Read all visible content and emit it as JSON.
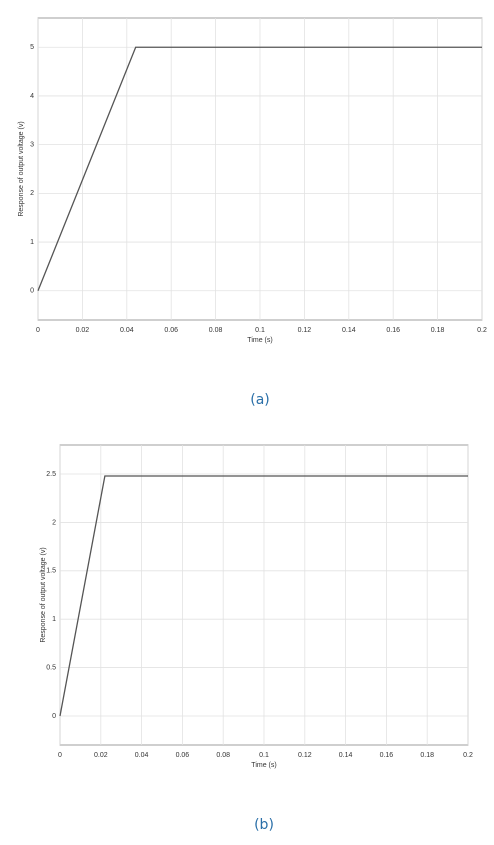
{
  "chart_data": [
    {
      "type": "line",
      "caption": "(a)",
      "xlabel": "Time (s)",
      "ylabel": "Response of output voltage (v)",
      "x": [
        0,
        0.044,
        0.2
      ],
      "series": [
        {
          "color": "#555555",
          "values": [
            0,
            5,
            5
          ]
        }
      ],
      "xlim": [
        0,
        0.2
      ],
      "xticks": [
        0,
        0.02,
        0.04,
        0.06,
        0.08,
        0.1,
        0.12,
        0.14,
        0.16,
        0.18,
        0.2
      ],
      "ylim": [
        -0.6,
        5.6
      ],
      "yticks": [
        0,
        1,
        2,
        3,
        4,
        5
      ],
      "grid": true
    },
    {
      "type": "line",
      "caption": "(b)",
      "xlabel": "Time (s)",
      "ylabel": "Response of output voltage (v)",
      "x": [
        0,
        0.022,
        0.2
      ],
      "series": [
        {
          "color": "#555555",
          "values": [
            0,
            2.48,
            2.48
          ]
        }
      ],
      "xlim": [
        0,
        0.2
      ],
      "xticks": [
        0,
        0.02,
        0.04,
        0.06,
        0.08,
        0.1,
        0.12,
        0.14,
        0.16,
        0.18,
        0.2
      ],
      "ylim": [
        -0.3,
        2.8
      ],
      "yticks": [
        0,
        0.5,
        1,
        1.5,
        2,
        2.5
      ],
      "grid": true
    }
  ]
}
